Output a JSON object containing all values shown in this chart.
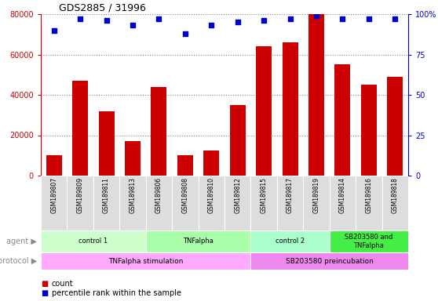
{
  "title": "GDS2885 / 31996",
  "samples": [
    "GSM189807",
    "GSM189809",
    "GSM189811",
    "GSM189813",
    "GSM189806",
    "GSM189808",
    "GSM189810",
    "GSM189812",
    "GSM189815",
    "GSM189817",
    "GSM189819",
    "GSM189814",
    "GSM189816",
    "GSM189818"
  ],
  "counts": [
    10000,
    47000,
    32000,
    17000,
    44000,
    10000,
    12500,
    35000,
    64000,
    66000,
    80000,
    55000,
    45000,
    49000
  ],
  "percentiles": [
    90,
    97,
    96,
    93,
    97,
    88,
    93,
    95,
    96,
    97,
    99,
    97,
    97,
    97
  ],
  "bar_color": "#cc0000",
  "dot_color": "#0000cc",
  "ylim_left": [
    0,
    80000
  ],
  "ylim_right": [
    0,
    100
  ],
  "yticks_left": [
    0,
    20000,
    40000,
    60000,
    80000
  ],
  "yticks_right": [
    0,
    25,
    50,
    75,
    100
  ],
  "agent_groups": [
    {
      "label": "control 1",
      "start": 0,
      "end": 4,
      "color": "#ccffcc"
    },
    {
      "label": "TNFalpha",
      "start": 4,
      "end": 8,
      "color": "#aaffaa"
    },
    {
      "label": "control 2",
      "start": 8,
      "end": 11,
      "color": "#aaffcc"
    },
    {
      "label": "SB203580 and\nTNFalpha",
      "start": 11,
      "end": 14,
      "color": "#44ee44"
    }
  ],
  "protocol_groups": [
    {
      "label": "TNFalpha stimulation",
      "start": 0,
      "end": 8,
      "color": "#ffaaff"
    },
    {
      "label": "SB203580 preincubation",
      "start": 8,
      "end": 14,
      "color": "#ee88ee"
    }
  ],
  "agent_label": "agent",
  "protocol_label": "protocol",
  "legend_count_label": "count",
  "legend_pct_label": "percentile rank within the sample",
  "background_color": "#ffffff",
  "sample_bg": "#dddddd"
}
